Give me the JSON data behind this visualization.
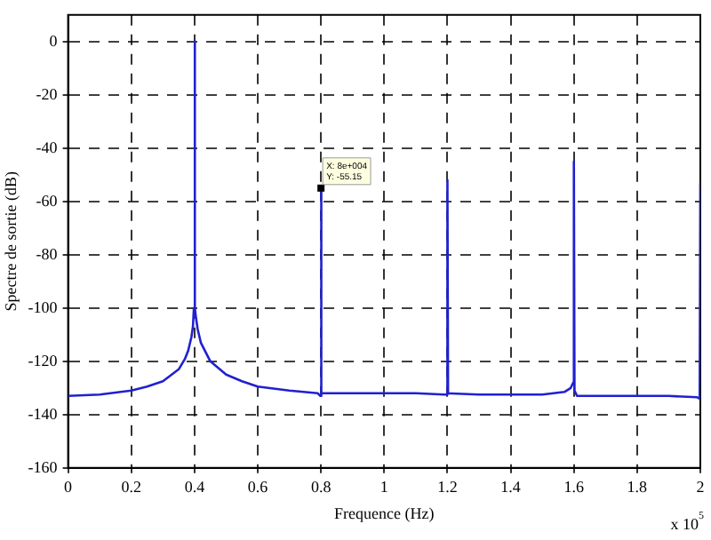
{
  "chart_data": {
    "type": "line",
    "xlabel": "Frequence (Hz)",
    "ylabel": "Spectre de sortie (dB)",
    "x": [
      0,
      0.1,
      0.2,
      0.25,
      0.3,
      0.35,
      0.37,
      0.38,
      0.39,
      0.395,
      0.398,
      0.4,
      0.402,
      0.405,
      0.41,
      0.42,
      0.45,
      0.5,
      0.55,
      0.6,
      0.7,
      0.79,
      0.798,
      0.8,
      0.802,
      0.9,
      1.0,
      1.1,
      1.19,
      1.198,
      1.2,
      1.202,
      1.3,
      1.4,
      1.5,
      1.57,
      1.59,
      1.598,
      1.6,
      1.602,
      1.61,
      1.7,
      1.8,
      1.9,
      1.99,
      1.998,
      2.0
    ],
    "series": [
      {
        "color": "#2020d0",
        "values": [
          -133,
          -132.5,
          -131,
          -129.5,
          -127.5,
          -123,
          -119,
          -116,
          -111,
          -107,
          -100,
          0,
          -100,
          -104,
          -108,
          -113,
          -120,
          -125,
          -127.5,
          -129.5,
          -131,
          -132,
          -133,
          -55,
          -132,
          -132,
          -132,
          -132,
          -132.5,
          -132.5,
          -52,
          -132,
          -132.5,
          -132.5,
          -132.5,
          -131.5,
          -130,
          -128,
          -45,
          -131,
          -133,
          -133,
          -133,
          -133,
          -133.5,
          -134,
          -53
        ]
      }
    ],
    "xlim": [
      0,
      2
    ],
    "ylim": [
      -160,
      10
    ],
    "xticks": [
      0,
      0.2,
      0.4,
      0.6,
      0.8,
      1,
      1.2,
      1.4,
      1.6,
      1.8,
      2
    ],
    "yticks": [
      0,
      -20,
      -40,
      -60,
      -80,
      -100,
      -120,
      -140,
      -160
    ],
    "grid": true,
    "line_style": "solid",
    "marker": "none",
    "legend": false,
    "annotations": [
      {
        "text": "X: 8e+004\nY: -55.15",
        "x": 0.8,
        "y": -55
      },
      "x 10$^{5}$"
    ]
  }
}
